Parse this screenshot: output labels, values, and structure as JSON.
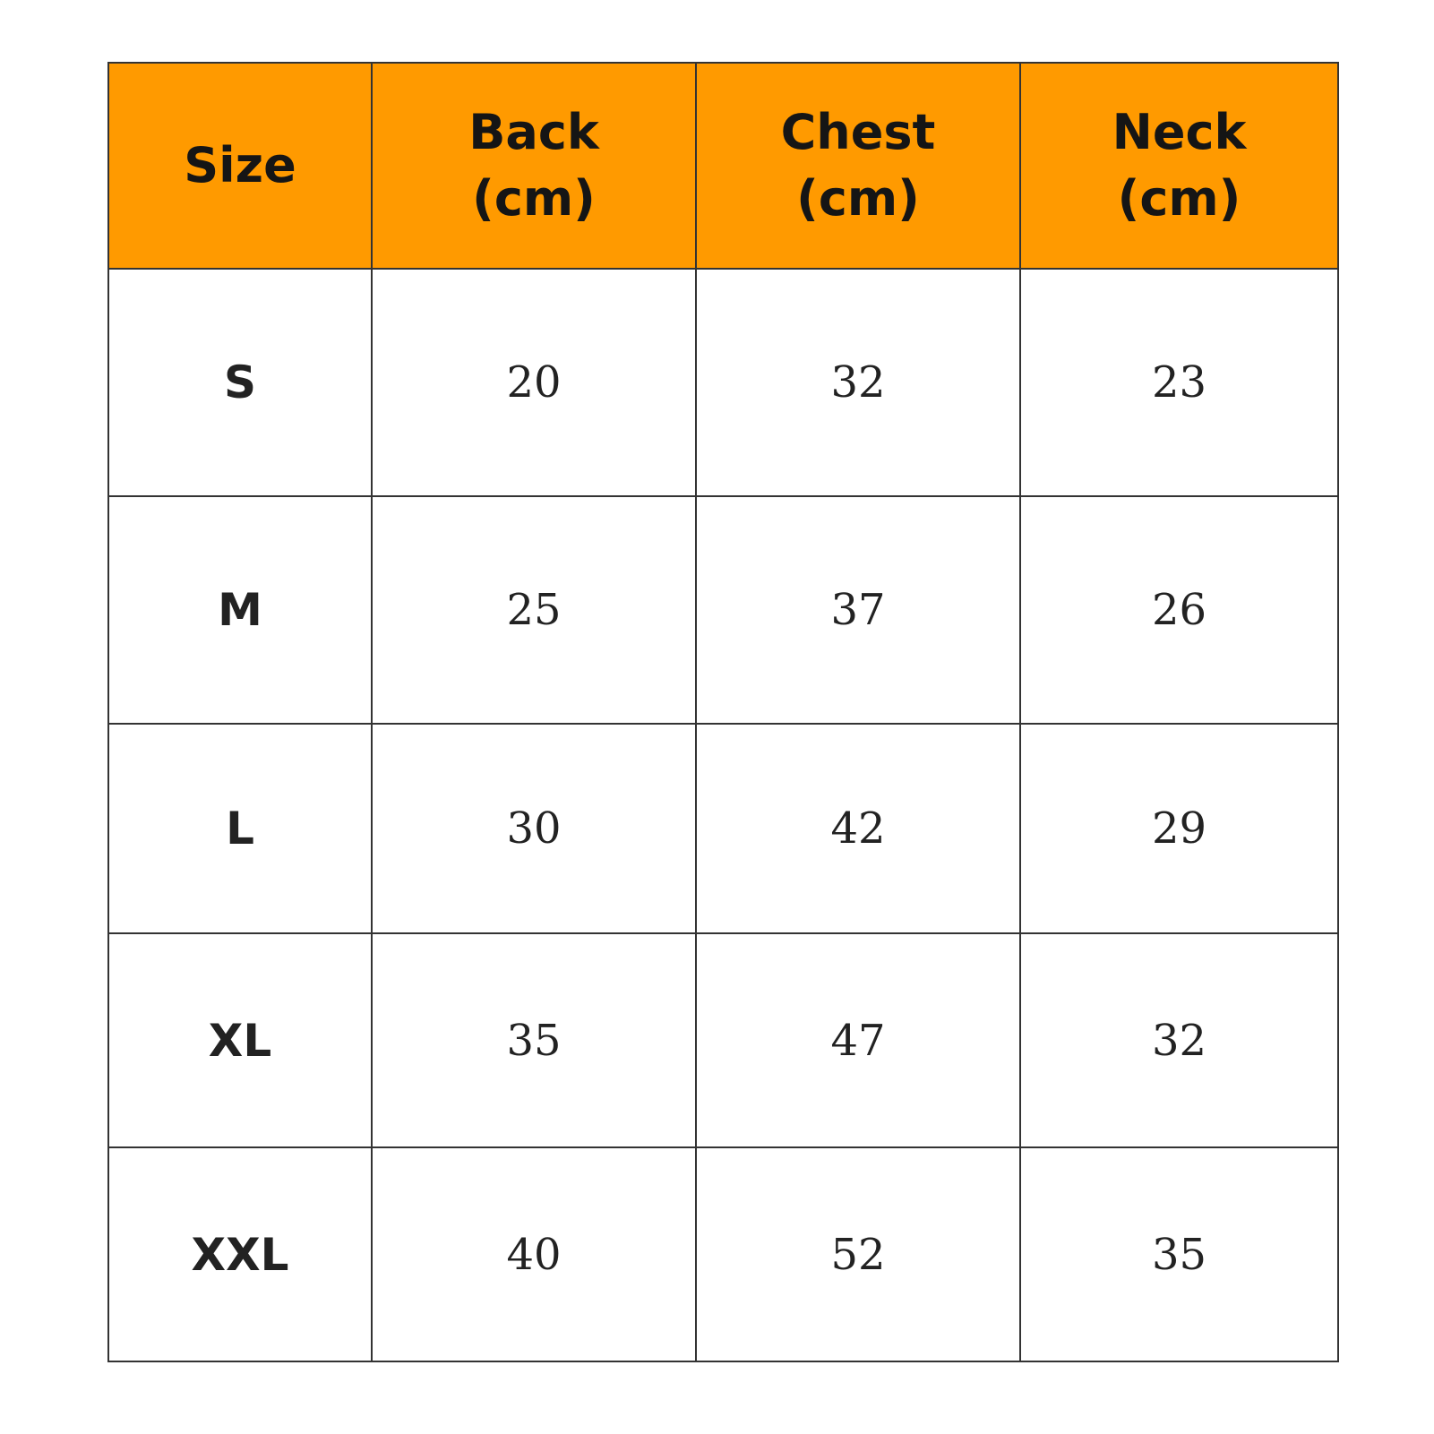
{
  "colors": {
    "header_background": "#ff9a00",
    "border": "#333333"
  },
  "table": {
    "headers": [
      {
        "line1": "Size",
        "line2": ""
      },
      {
        "line1": "Back",
        "line2": "(cm)"
      },
      {
        "line1": "Chest",
        "line2": "(cm)"
      },
      {
        "line1": "Neck",
        "line2": "(cm)"
      }
    ],
    "rows": [
      {
        "size": "S",
        "back": "20",
        "chest": "32",
        "neck": "23"
      },
      {
        "size": "M",
        "back": "25",
        "chest": "37",
        "neck": "26"
      },
      {
        "size": "L",
        "back": "30",
        "chest": "42",
        "neck": "29"
      },
      {
        "size": "XL",
        "back": "35",
        "chest": "47",
        "neck": "32"
      },
      {
        "size": "XXL",
        "back": "40",
        "chest": "52",
        "neck": "35"
      }
    ]
  }
}
